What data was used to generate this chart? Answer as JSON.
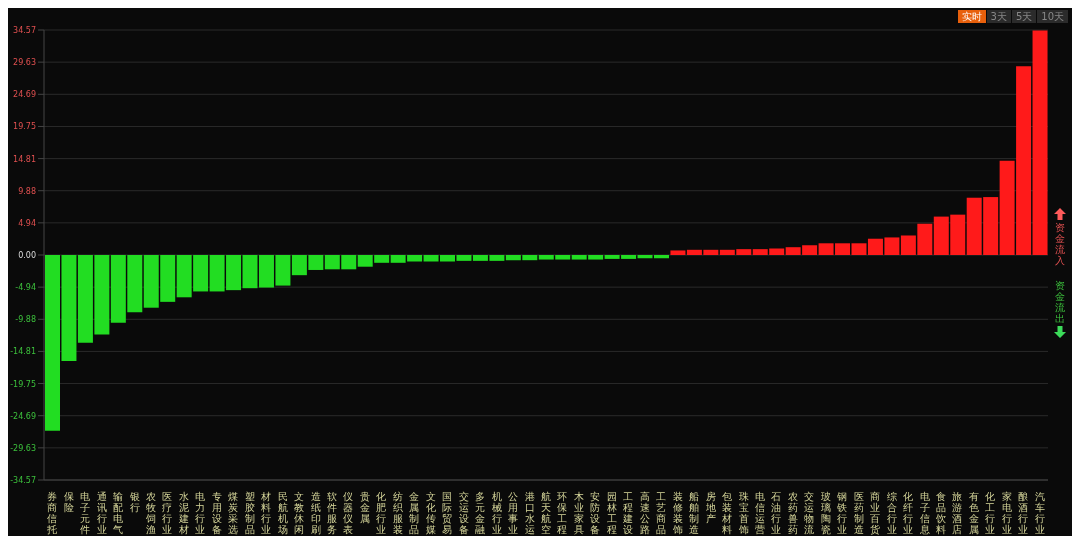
{
  "chart_data": {
    "type": "bar",
    "categories": [
      "券商信托",
      "保险",
      "电子元件",
      "通讯行业",
      "输配电气",
      "银行",
      "农牧饲渔",
      "医疗行业",
      "水泥建材",
      "电力行业",
      "专用设备",
      "煤炭采选",
      "塑胶制品",
      "材料行业",
      "民航机场",
      "文教休闲",
      "造纸印刷",
      "软件服务",
      "仪器仪表",
      "贵金属",
      "化肥行业",
      "纺织服装",
      "金属制品",
      "文化传媒",
      "国际贸易",
      "交运设备",
      "多元金融",
      "机械行业",
      "公用事业",
      "港口水运",
      "航天航空",
      "环保工程",
      "木业家具",
      "安防设备",
      "园林工程",
      "工程建设",
      "高速公路",
      "工艺商品",
      "装修装饰",
      "船舶制造",
      "房地产",
      "包装材料",
      "珠宝首饰",
      "电信运营",
      "石油行业",
      "农药兽药",
      "交运物流",
      "玻璃陶瓷",
      "钢铁行业",
      "医药制造",
      "商业百货",
      "综合行业",
      "化纤行业",
      "电子信息",
      "食品饮料",
      "旅游酒店",
      "有色金属",
      "化工行业",
      "家电行业",
      "酿酒行业",
      "汽车行业"
    ],
    "values": [
      -27.0,
      -16.3,
      -13.5,
      -12.2,
      -10.4,
      -8.8,
      -8.1,
      -7.2,
      -6.5,
      -5.6,
      -5.6,
      -5.4,
      -5.1,
      -5.0,
      -4.7,
      -3.1,
      -2.3,
      -2.2,
      -2.2,
      -1.8,
      -1.2,
      -1.2,
      -1.0,
      -1.0,
      -1.0,
      -0.9,
      -0.9,
      -0.9,
      -0.8,
      -0.8,
      -0.7,
      -0.7,
      -0.7,
      -0.7,
      -0.6,
      -0.6,
      -0.5,
      -0.5,
      0.7,
      0.8,
      0.8,
      0.8,
      0.9,
      0.9,
      1.0,
      1.2,
      1.5,
      1.8,
      1.8,
      1.8,
      2.5,
      2.7,
      3.0,
      4.8,
      5.9,
      6.2,
      8.8,
      8.9,
      14.5,
      29.0,
      34.5
    ],
    "colors": [
      "#22dd22",
      "#22dd22",
      "#22dd22",
      "#22dd22",
      "#22dd22",
      "#22dd22",
      "#22dd22",
      "#22dd22",
      "#22dd22",
      "#22dd22",
      "#22dd22",
      "#22dd22",
      "#22dd22",
      "#22dd22",
      "#22dd22",
      "#22dd22",
      "#22dd22",
      "#22dd22",
      "#22dd22",
      "#22dd22",
      "#22dd22",
      "#22dd22",
      "#22dd22",
      "#22dd22",
      "#22dd22",
      "#22dd22",
      "#22dd22",
      "#22dd22",
      "#22dd22",
      "#22dd22",
      "#22dd22",
      "#22dd22",
      "#22dd22",
      "#22dd22",
      "#22dd22",
      "#22dd22",
      "#22dd22",
      "#22dd22",
      "#ff1a1a",
      "#ff1a1a",
      "#ff1a1a",
      "#ff1a1a",
      "#ff1a1a",
      "#ff1a1a",
      "#ff1a1a",
      "#ff1a1a",
      "#ff1a1a",
      "#ff1a1a",
      "#ff1a1a",
      "#ff1a1a",
      "#ff1a1a",
      "#ff1a1a",
      "#ff1a1a",
      "#ff1a1a",
      "#ff1a1a",
      "#ff1a1a",
      "#ff1a1a",
      "#ff1a1a",
      "#ff1a1a",
      "#ff1a1a",
      "#ff1a1a"
    ],
    "ylim": [
      -34.57,
      34.57
    ],
    "yticks": [
      {
        "value": -34.57,
        "label": "-34.57"
      },
      {
        "value": -29.63,
        "label": "-29.63"
      },
      {
        "value": -24.69,
        "label": "-24.69"
      },
      {
        "value": -19.75,
        "label": "-19.75"
      },
      {
        "value": -14.81,
        "label": "-14.81"
      },
      {
        "value": -9.88,
        "label": "-9.88"
      },
      {
        "value": -4.94,
        "label": "-4.94"
      },
      {
        "value": 0,
        "label": "0.00"
      },
      {
        "value": 4.94,
        "label": "4.94"
      },
      {
        "value": 9.88,
        "label": "9.88"
      },
      {
        "value": 14.81,
        "label": "14.81"
      },
      {
        "value": 19.75,
        "label": "19.75"
      },
      {
        "value": 24.69,
        "label": "24.69"
      },
      {
        "value": 29.63,
        "label": "29.63"
      },
      {
        "value": 34.57,
        "label": "34.57"
      }
    ],
    "grid": "y",
    "annotations": [
      "实时",
      "3天",
      "5天",
      "10天",
      "资金流入",
      "资金流出"
    ]
  }
}
